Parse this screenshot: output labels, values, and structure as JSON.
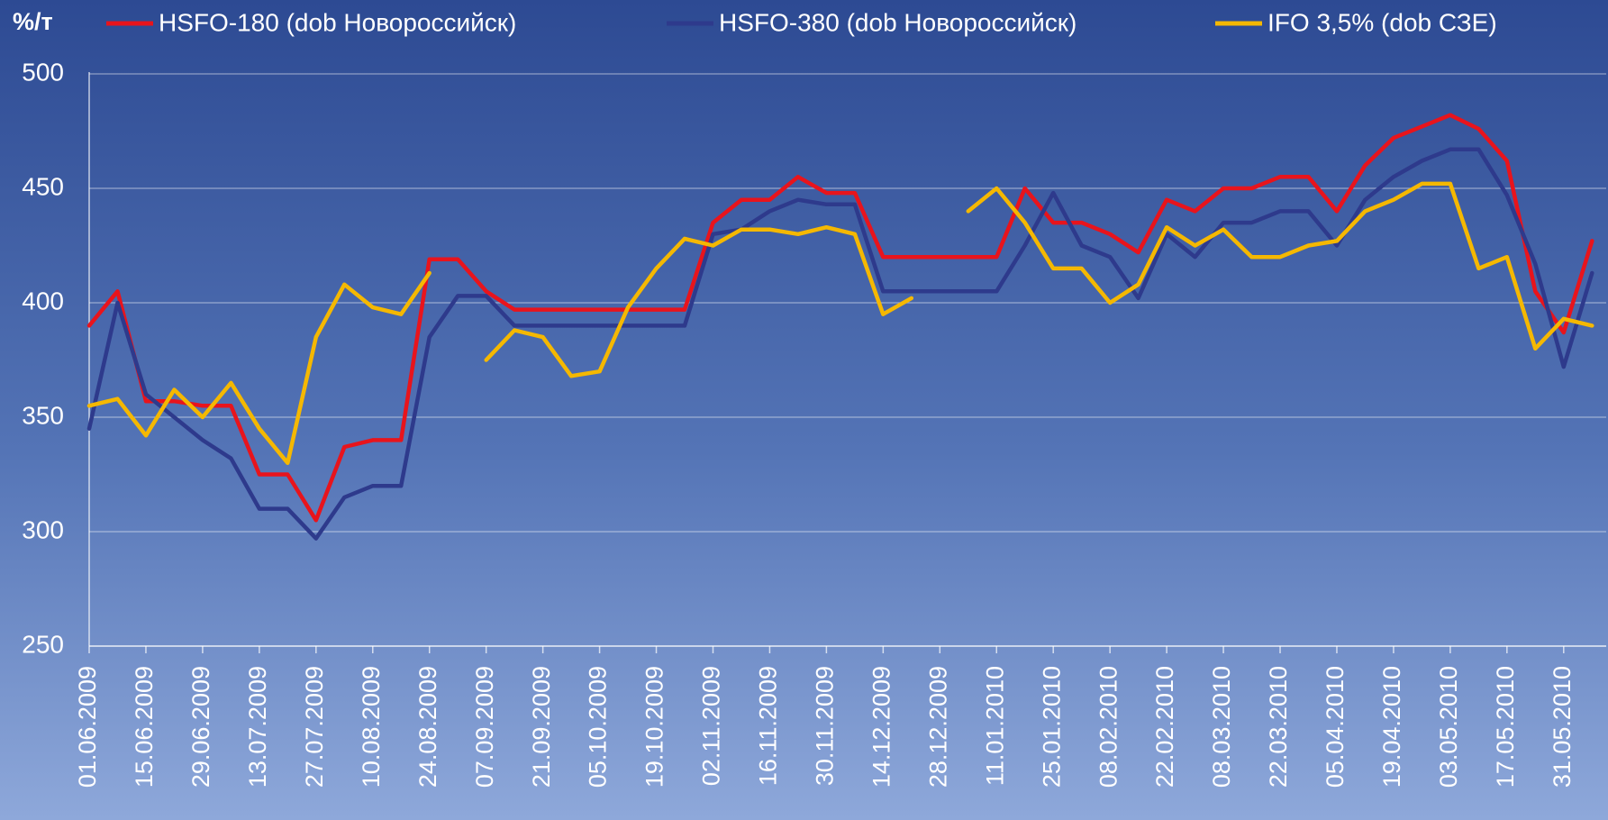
{
  "chart_data": {
    "type": "line",
    "y_label": "%/т",
    "categories": [
      "01.06.2009",
      null,
      "15.06.2009",
      null,
      "29.06.2009",
      null,
      "13.07.2009",
      null,
      "27.07.2009",
      null,
      "10.08.2009",
      null,
      "24.08.2009",
      null,
      "07.09.2009",
      null,
      "21.09.2009",
      null,
      "05.10.2009",
      null,
      "19.10.2009",
      null,
      "02.11.2009",
      null,
      "16.11.2009",
      null,
      "30.11.2009",
      null,
      "14.12.2009",
      null,
      "28.12.2009",
      null,
      "11.01.2010",
      null,
      "25.01.2010",
      null,
      "08.02.2010",
      null,
      "22.02.2010",
      null,
      "08.03.2010",
      null,
      "22.03.2010",
      null,
      "05.04.2010",
      null,
      "19.04.2010",
      null,
      "03.05.2010",
      null,
      "17.05.2010",
      null,
      "31.05.2010",
      null
    ],
    "series": [
      {
        "name": "HSFO-180 (dob Новороссийск)",
        "color": "#e8141c",
        "values": [
          390,
          405,
          357,
          357,
          355,
          355,
          325,
          325,
          305,
          337,
          340,
          340,
          419,
          419,
          405,
          397,
          397,
          397,
          397,
          397,
          397,
          397,
          435,
          445,
          445,
          455,
          448,
          448,
          420,
          420,
          420,
          420,
          420,
          450,
          435,
          435,
          430,
          422,
          445,
          440,
          450,
          450,
          455,
          455,
          440,
          460,
          472,
          477,
          482,
          476,
          462,
          405,
          387,
          427
        ]
      },
      {
        "name": "HSFO-380 (dob Новороссийск)",
        "color": "#2e3a8c",
        "values": [
          345,
          400,
          360,
          350,
          340,
          332,
          310,
          310,
          297,
          315,
          320,
          320,
          385,
          403,
          403,
          390,
          390,
          390,
          390,
          390,
          390,
          390,
          430,
          432,
          440,
          445,
          443,
          443,
          405,
          405,
          405,
          405,
          405,
          425,
          448,
          425,
          420,
          402,
          430,
          420,
          435,
          435,
          440,
          440,
          425,
          445,
          455,
          462,
          467,
          467,
          447,
          417,
          372,
          413
        ]
      },
      {
        "name": "IFO 3,5% (dob СЗЕ)",
        "color": "#f5b800",
        "values": [
          355,
          358,
          342,
          362,
          350,
          365,
          345,
          330,
          385,
          408,
          398,
          395,
          413,
          null,
          375,
          388,
          385,
          368,
          370,
          398,
          415,
          428,
          425,
          432,
          432,
          430,
          433,
          430,
          395,
          402,
          null,
          440,
          450,
          435,
          415,
          415,
          400,
          408,
          433,
          425,
          432,
          420,
          420,
          425,
          427,
          440,
          445,
          452,
          452,
          415,
          420,
          380,
          393,
          390
        ]
      }
    ],
    "ylim": [
      250,
      500
    ],
    "yticks": [
      250,
      300,
      350,
      400,
      450,
      500
    ],
    "grid": true,
    "legend": "top"
  }
}
